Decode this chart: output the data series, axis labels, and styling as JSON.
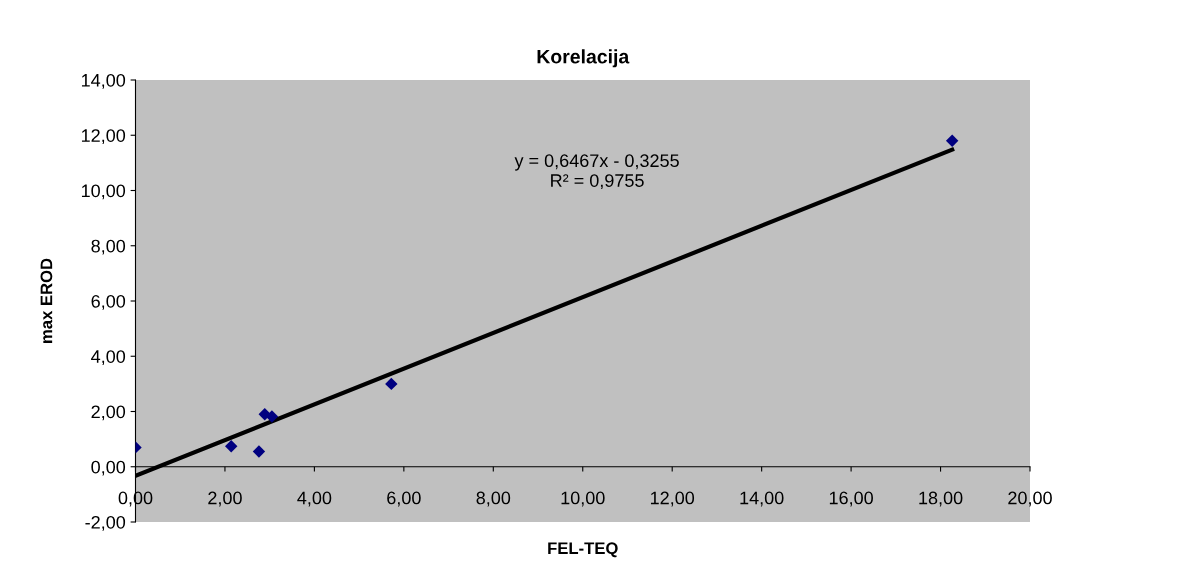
{
  "chart_data": {
    "type": "scatter",
    "title": "Korelacija",
    "xlabel": "FEL-TEQ",
    "ylabel": "max EROD",
    "xlim": [
      0,
      20
    ],
    "ylim": [
      -2,
      14
    ],
    "xticks": [
      {
        "value": 0,
        "label": "0,00"
      },
      {
        "value": 2,
        "label": "2,00"
      },
      {
        "value": 4,
        "label": "4,00"
      },
      {
        "value": 6,
        "label": "6,00"
      },
      {
        "value": 8,
        "label": "8,00"
      },
      {
        "value": 10,
        "label": "10,00"
      },
      {
        "value": 12,
        "label": "12,00"
      },
      {
        "value": 14,
        "label": "14,00"
      },
      {
        "value": 16,
        "label": "16,00"
      },
      {
        "value": 18,
        "label": "18,00"
      },
      {
        "value": 20,
        "label": "20,00"
      }
    ],
    "yticks": [
      {
        "value": -2,
        "label": "-2,00"
      },
      {
        "value": 0,
        "label": "0,00"
      },
      {
        "value": 2,
        "label": "2,00"
      },
      {
        "value": 4,
        "label": "4,00"
      },
      {
        "value": 6,
        "label": "6,00"
      },
      {
        "value": 8,
        "label": "8,00"
      },
      {
        "value": 10,
        "label": "10,00"
      },
      {
        "value": 12,
        "label": "12,00"
      },
      {
        "value": 14,
        "label": "14,00"
      }
    ],
    "series": [
      {
        "color": "#000080",
        "marker": "diamond",
        "x": [
          0,
          2.14,
          2.76,
          2.89,
          3.05,
          5.72,
          18.26
        ],
        "values": [
          0.7,
          0.74,
          0.55,
          1.9,
          1.82,
          3.0,
          11.8
        ]
      },
      {
        "type": "line",
        "color": "#000000",
        "marker": "none",
        "line_style": "solid",
        "x": [
          0,
          18.26
        ],
        "values": [
          -0.33,
          11.48
        ]
      }
    ],
    "annotations": [
      "y = 0,6467x - 0,3255",
      "R² = 0,9755"
    ],
    "legend": false
  }
}
